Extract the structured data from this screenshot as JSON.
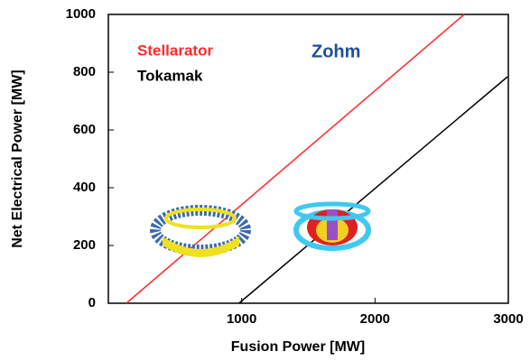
{
  "chart_data": {
    "type": "line",
    "annotation": "Zohm",
    "x_label": "Fusion Power [MW]",
    "y_label": "Net Electrical Power [MW]",
    "series": [
      {
        "name": "Stellarator",
        "color": "#ff2a2a",
        "x": [
          135,
          2669
        ],
        "values": [
          0,
          1000
        ]
      },
      {
        "name": "Tokamak",
        "color": "#000000",
        "x": [
          980,
          2993
        ],
        "values": [
          0,
          784
        ]
      }
    ],
    "xlim": [
      0,
      3000
    ],
    "xticks": [
      1000,
      2000,
      3000
    ],
    "ylim": [
      0,
      1000
    ],
    "yticks": [
      0,
      200,
      400,
      600,
      800,
      1000
    ]
  }
}
